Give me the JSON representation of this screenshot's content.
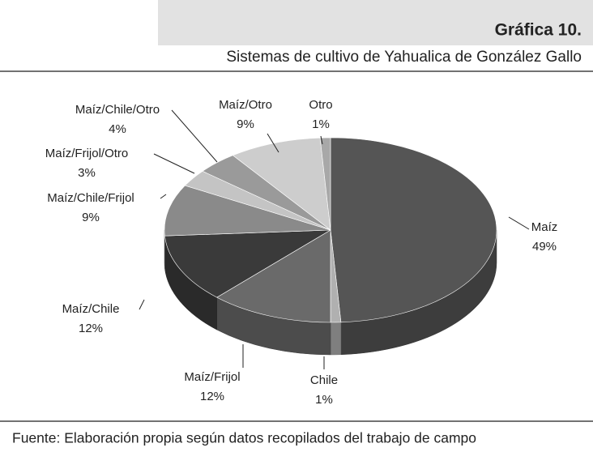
{
  "chart_data": {
    "type": "pie3d",
    "title": "Gráfica 10.",
    "subtitle": "Sistemas de cultivo de Yahualica de González Gallo",
    "source": "Fuente: Elaboración propia según datos recopilados del trabajo de campo",
    "categories": [
      "Maíz",
      "Chile",
      "Maíz/Frijol",
      "Maíz/Chile",
      "Maíz/Chile/Frijol",
      "Maíz/Frijol/Otro",
      "Maíz/Chile/Otro",
      "Maíz/Otro",
      "Otro"
    ],
    "values": [
      49,
      1,
      12,
      12,
      9,
      3,
      4,
      9,
      1
    ],
    "value_labels": [
      "49%",
      "1%",
      "12%",
      "12%",
      "9%",
      "3%",
      "4%",
      "9%",
      "1%"
    ],
    "colors": [
      "#555555",
      "#b0b0b0",
      "#6a6a6a",
      "#3a3a3a",
      "#8a8a8a",
      "#c4c4c4",
      "#9a9a9a",
      "#cdcdcd",
      "#a8a8a8"
    ]
  }
}
